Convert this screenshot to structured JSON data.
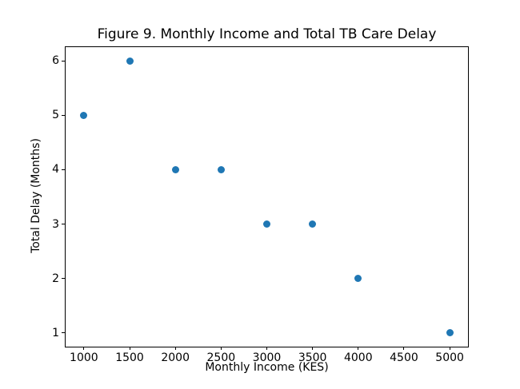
{
  "chart_data": {
    "type": "scatter",
    "title": "Figure 9. Monthly Income and Total TB Care Delay",
    "xlabel": "Monthly Income (KES)",
    "ylabel": "Total Delay (Months)",
    "points": [
      {
        "x": 1000,
        "y": 5
      },
      {
        "x": 1500,
        "y": 6
      },
      {
        "x": 2000,
        "y": 4
      },
      {
        "x": 2500,
        "y": 4
      },
      {
        "x": 3000,
        "y": 3
      },
      {
        "x": 3500,
        "y": 3
      },
      {
        "x": 4000,
        "y": 2
      },
      {
        "x": 5000,
        "y": 1
      }
    ],
    "xticks": [
      1000,
      1500,
      2000,
      2500,
      3000,
      3500,
      4000,
      4500,
      5000
    ],
    "yticks": [
      1,
      2,
      3,
      4,
      5,
      6
    ],
    "xlim": [
      800,
      5200
    ],
    "ylim": [
      0.75,
      6.25
    ],
    "marker_color": "#1f77b4",
    "axis_color": "#000000",
    "background_color": "#ffffff",
    "grid": false,
    "legend": null
  }
}
